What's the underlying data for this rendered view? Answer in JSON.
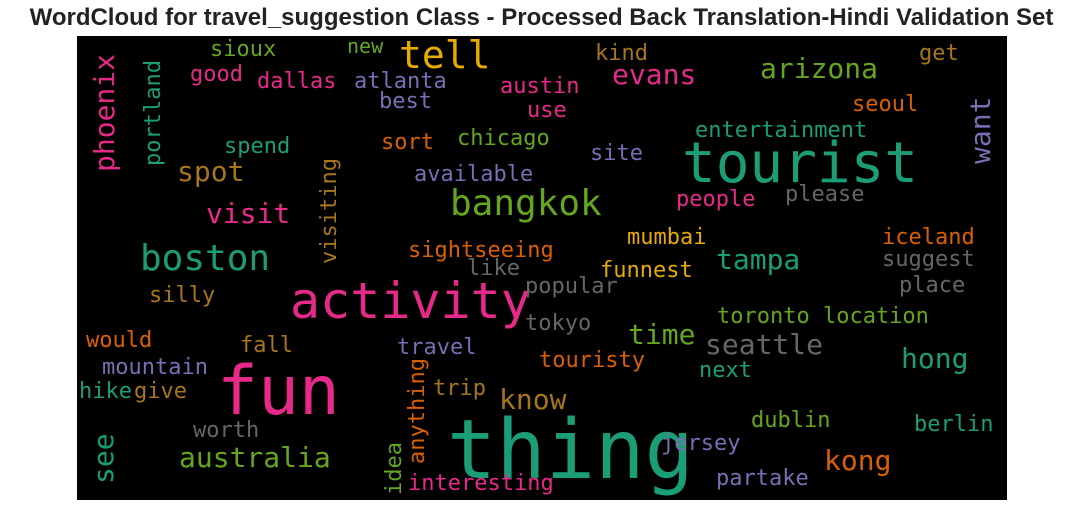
{
  "title": "WordCloud for travel_suggestion Class - Processed Back Translation-Hindi Validation Set",
  "chart_data": {
    "type": "wordcloud",
    "background": "#000000",
    "words": [
      {
        "text": "thing",
        "color": "#1b9e77"
      },
      {
        "text": "fun",
        "color": "#e7298a"
      },
      {
        "text": "tourist",
        "color": "#1b9e77"
      },
      {
        "text": "activity",
        "color": "#e7298a"
      },
      {
        "text": "bangkok",
        "color": "#66a61e"
      },
      {
        "text": "boston",
        "color": "#1b9e77"
      },
      {
        "text": "tell",
        "color": "#e6ab02"
      },
      {
        "text": "australia",
        "color": "#66a61e"
      },
      {
        "text": "seattle",
        "color": "#666666"
      },
      {
        "text": "kong",
        "color": "#d95f02"
      },
      {
        "text": "hong",
        "color": "#1b9e77"
      },
      {
        "text": "tampa",
        "color": "#1b9e77"
      },
      {
        "text": "arizona",
        "color": "#66a61e"
      },
      {
        "text": "evans",
        "color": "#e7298a"
      },
      {
        "text": "visit",
        "color": "#e7298a"
      },
      {
        "text": "spot",
        "color": "#a6761d"
      },
      {
        "text": "time",
        "color": "#66a61e"
      },
      {
        "text": "know",
        "color": "#a6761d"
      },
      {
        "text": "phoenix",
        "color": "#e7298a"
      },
      {
        "text": "want",
        "color": "#7570b3"
      },
      {
        "text": "see",
        "color": "#1b9e77"
      },
      {
        "text": "portland",
        "color": "#1b9e77"
      },
      {
        "text": "visiting",
        "color": "#a6761d"
      },
      {
        "text": "anything",
        "color": "#d95f02"
      },
      {
        "text": "idea",
        "color": "#66a61e"
      },
      {
        "text": "sioux",
        "color": "#66a61e"
      },
      {
        "text": "new",
        "color": "#66a61e"
      },
      {
        "text": "good",
        "color": "#e7298a"
      },
      {
        "text": "dallas",
        "color": "#e7298a"
      },
      {
        "text": "atlanta",
        "color": "#7570b3"
      },
      {
        "text": "best",
        "color": "#7570b3"
      },
      {
        "text": "austin",
        "color": "#e7298a"
      },
      {
        "text": "use",
        "color": "#e7298a"
      },
      {
        "text": "kind",
        "color": "#a6761d"
      },
      {
        "text": "get",
        "color": "#a6761d"
      },
      {
        "text": "seoul",
        "color": "#d95f02"
      },
      {
        "text": "entertainment",
        "color": "#1b9e77"
      },
      {
        "text": "spend",
        "color": "#1b9e77"
      },
      {
        "text": "sort",
        "color": "#d95f02"
      },
      {
        "text": "chicago",
        "color": "#66a61e"
      },
      {
        "text": "site",
        "color": "#7570b3"
      },
      {
        "text": "available",
        "color": "#7570b3"
      },
      {
        "text": "people",
        "color": "#e7298a"
      },
      {
        "text": "please",
        "color": "#666666"
      },
      {
        "text": "iceland",
        "color": "#d95f02"
      },
      {
        "text": "mumbai",
        "color": "#e6ab02"
      },
      {
        "text": "sightseeing",
        "color": "#d95f02"
      },
      {
        "text": "like",
        "color": "#666666"
      },
      {
        "text": "funnest",
        "color": "#e6ab02"
      },
      {
        "text": "suggest",
        "color": "#666666"
      },
      {
        "text": "place",
        "color": "#666666"
      },
      {
        "text": "popular",
        "color": "#666666"
      },
      {
        "text": "silly",
        "color": "#a6761d"
      },
      {
        "text": "toronto location",
        "color": "#66a61e"
      },
      {
        "text": "tokyo",
        "color": "#666666"
      },
      {
        "text": "would",
        "color": "#d95f02"
      },
      {
        "text": "fall",
        "color": "#a6761d"
      },
      {
        "text": "travel",
        "color": "#7570b3"
      },
      {
        "text": "touristy",
        "color": "#d95f02"
      },
      {
        "text": "next",
        "color": "#1b9e77"
      },
      {
        "text": "mountain",
        "color": "#7570b3"
      },
      {
        "text": "hike",
        "color": "#1b9e77"
      },
      {
        "text": "give",
        "color": "#a6761d"
      },
      {
        "text": "trip",
        "color": "#a6761d"
      },
      {
        "text": "dublin",
        "color": "#66a61e"
      },
      {
        "text": "worth",
        "color": "#666666"
      },
      {
        "text": "jersey",
        "color": "#7570b3"
      },
      {
        "text": "berlin",
        "color": "#1b9e77"
      },
      {
        "text": "interesting",
        "color": "#e7298a"
      },
      {
        "text": "partake",
        "color": "#7570b3"
      }
    ]
  }
}
